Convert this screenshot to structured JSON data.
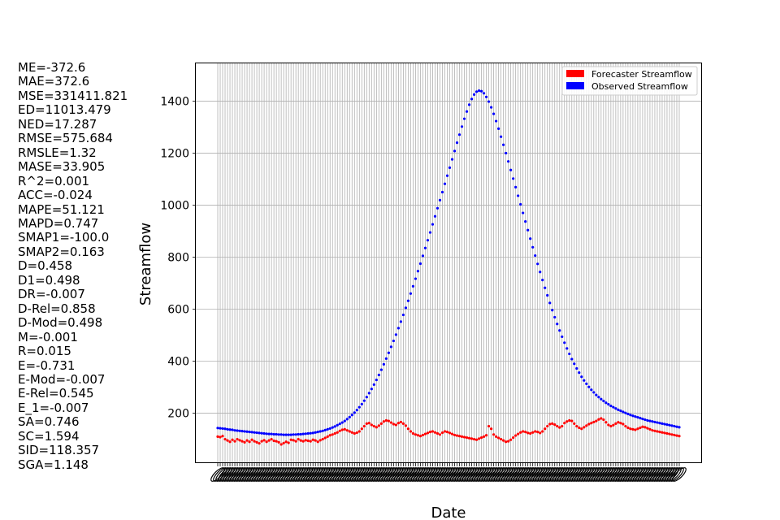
{
  "stats": [
    "ME=-372.6",
    "MAE=372.6",
    "MSE=331411.821",
    "ED=11013.479",
    "NED=17.287",
    "RMSE=575.684",
    "RMSLE=1.32",
    "MASE=33.905",
    "R^2=0.001",
    "ACC=-0.024",
    "MAPE=51.121",
    "MAPD=0.747",
    "SMAP1=-100.0",
    "SMAP2=0.163",
    "D=0.458",
    "D1=0.498",
    "DR=-0.007",
    "D-Rel=0.858",
    "D-Mod=0.498",
    "M=-0.001",
    "R=0.015",
    "E=-0.731",
    "E-Mod=-0.007",
    "E-Rel=0.545",
    "E_1=-0.007",
    "SA=0.746",
    "SC=1.594",
    "SID=118.357",
    "SGA=1.148"
  ],
  "chart_data": {
    "type": "scatter",
    "title": "",
    "xlabel": "Date",
    "ylabel": "Streamflow",
    "ylim": [
      8,
      1545
    ],
    "yticks": [
      200,
      400,
      600,
      800,
      1000,
      1200,
      1400
    ],
    "grid": true,
    "legend_position": "top-right",
    "colors": {
      "forecast": "#ff0000",
      "observed": "#0000ff"
    },
    "series": [
      {
        "name": "Forecaster Streamflow",
        "values": [
          110,
          108,
          112,
          100,
          95,
          90,
          98,
          92,
          100,
          96,
          92,
          88,
          95,
          90,
          98,
          92,
          88,
          84,
          92,
          96,
          90,
          95,
          100,
          94,
          92,
          88,
          80,
          85,
          90,
          86,
          98,
          96,
          92,
          100,
          95,
          92,
          96,
          94,
          92,
          98,
          95,
          90,
          96,
          100,
          105,
          110,
          115,
          118,
          122,
          126,
          132,
          136,
          138,
          134,
          130,
          126,
          122,
          125,
          130,
          140,
          150,
          160,
          162,
          155,
          150,
          146,
          152,
          160,
          168,
          172,
          170,
          164,
          158,
          155,
          162,
          166,
          160,
          152,
          140,
          130,
          122,
          118,
          115,
          112,
          116,
          120,
          124,
          128,
          130,
          126,
          122,
          118,
          125,
          130,
          128,
          124,
          120,
          116,
          114,
          112,
          110,
          108,
          106,
          104,
          102,
          100,
          98,
          102,
          106,
          110,
          115,
          150,
          140,
          118,
          110,
          105,
          100,
          95,
          90,
          92,
          98,
          106,
          114,
          120,
          126,
          130,
          128,
          124,
          122,
          126,
          130,
          128,
          124,
          130,
          140,
          150,
          158,
          160,
          156,
          150,
          145,
          150,
          162,
          168,
          172,
          170,
          160,
          150,
          144,
          140,
          146,
          152,
          158,
          162,
          166,
          170,
          176,
          180,
          175,
          165,
          155,
          150,
          154,
          160,
          165,
          162,
          158,
          150,
          144,
          140,
          138,
          136,
          140,
          144,
          148,
          146,
          142,
          138,
          134,
          132,
          130,
          128,
          126,
          124,
          122,
          120,
          118,
          116,
          114,
          112
        ]
      },
      {
        "name": "Observed Streamflow",
        "values": [
          143,
          142,
          141,
          140,
          138,
          137,
          136,
          134,
          133,
          132,
          131,
          130,
          129,
          128,
          127,
          126,
          125,
          124,
          123,
          122,
          121,
          120,
          120,
          119,
          119,
          118,
          118,
          117,
          117,
          117,
          117,
          118,
          118,
          119,
          119,
          120,
          121,
          122,
          123,
          124,
          126,
          128,
          130,
          132,
          135,
          138,
          141,
          145,
          149,
          154,
          159,
          164,
          170,
          177,
          185,
          193,
          202,
          212,
          223,
          235,
          248,
          262,
          277,
          293,
          310,
          328,
          347,
          367,
          388,
          410,
          432,
          455,
          478,
          502,
          527,
          552,
          578,
          605,
          632,
          660,
          688,
          717,
          746,
          775,
          805,
          835,
          865,
          895,
          926,
          957,
          988,
          1019,
          1050,
          1082,
          1113,
          1144,
          1176,
          1208,
          1240,
          1271,
          1302,
          1332,
          1360,
          1386,
          1408,
          1425,
          1436,
          1440,
          1438,
          1430,
          1416,
          1398,
          1376,
          1351,
          1323,
          1294,
          1263,
          1232,
          1200,
          1168,
          1135,
          1102,
          1069,
          1036,
          1003,
          970,
          937,
          904,
          871,
          838,
          806,
          774,
          743,
          712,
          682,
          653,
          624,
          596,
          569,
          543,
          518,
          494,
          471,
          449,
          428,
          408,
          390,
          372,
          356,
          340,
          326,
          313,
          301,
          290,
          280,
          270,
          262,
          254,
          247,
          240,
          234,
          228,
          223,
          218,
          213,
          209,
          205,
          201,
          197,
          193,
          190,
          187,
          184,
          181,
          178,
          175,
          172,
          170,
          168,
          166,
          164,
          162,
          160,
          158,
          156,
          154,
          152,
          150,
          148,
          146
        ]
      }
    ]
  }
}
